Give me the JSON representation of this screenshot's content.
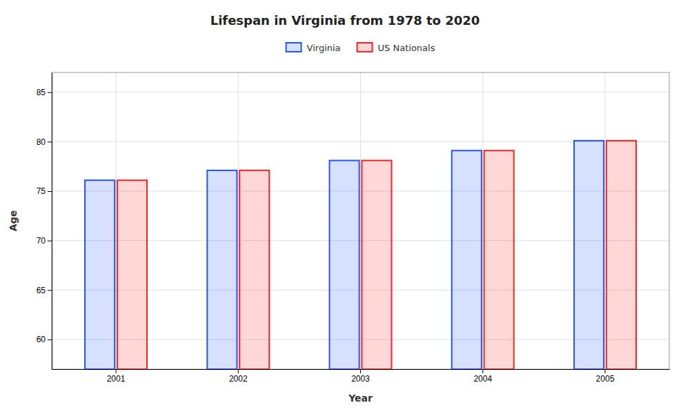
{
  "chart_data": {
    "type": "bar",
    "title": "Lifespan in Virginia from 1978 to 2020",
    "xlabel": "Year",
    "ylabel": "Age",
    "categories": [
      "2001",
      "2002",
      "2003",
      "2004",
      "2005"
    ],
    "series": [
      {
        "name": "Virginia",
        "color": "#2255ff",
        "values": [
          76.1,
          77.1,
          78.1,
          79.1,
          80.1
        ]
      },
      {
        "name": "US Nationals",
        "color": "#ff2222",
        "values": [
          76.1,
          77.1,
          78.1,
          79.1,
          80.1
        ]
      }
    ],
    "ylim": [
      57,
      87
    ],
    "yticks": [
      60,
      65,
      70,
      75,
      80,
      85
    ],
    "grid": true,
    "legend": "top"
  }
}
